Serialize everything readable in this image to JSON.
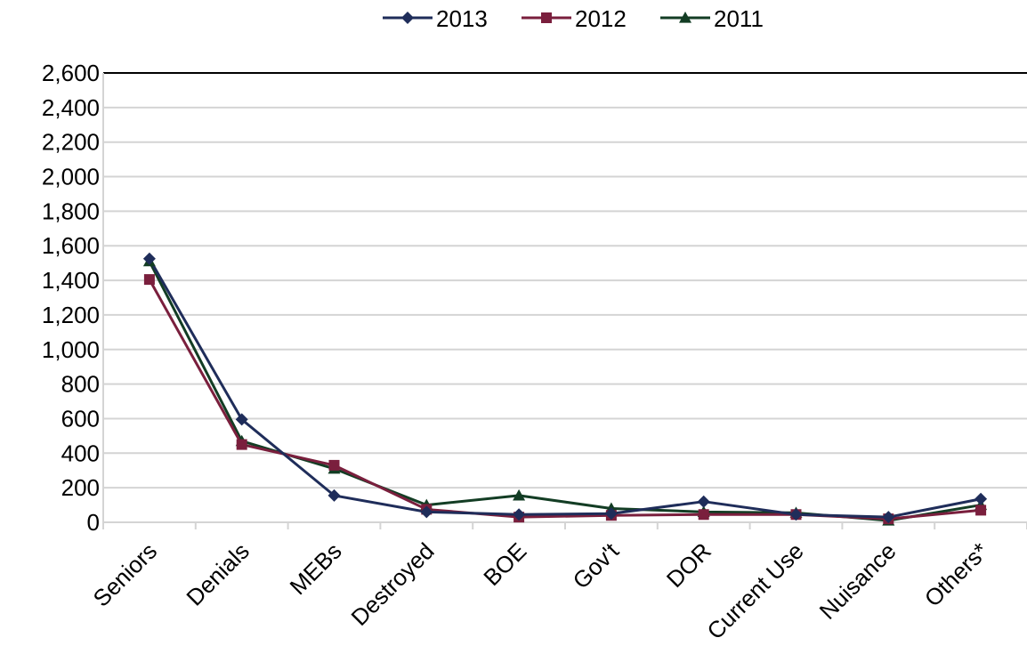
{
  "chart_data": {
    "type": "line",
    "categories": [
      "Seniors",
      "Denials",
      "MEBs",
      "Destroyed",
      "BOE",
      "Gov't",
      "DOR",
      "Current Use",
      "Nuisance",
      "Others*"
    ],
    "series": [
      {
        "name": "2013",
        "color": "#1f2d5a",
        "marker": "diamond",
        "values": [
          1525,
          595,
          155,
          60,
          45,
          50,
          120,
          45,
          30,
          135
        ]
      },
      {
        "name": "2012",
        "color": "#7a1f3d",
        "marker": "square",
        "values": [
          1405,
          450,
          330,
          75,
          30,
          40,
          45,
          45,
          20,
          70
        ]
      },
      {
        "name": "2011",
        "color": "#133d24",
        "marker": "triangle",
        "values": [
          1510,
          470,
          310,
          100,
          155,
          80,
          60,
          55,
          10,
          100
        ]
      }
    ],
    "ylim": [
      0,
      2600
    ],
    "y_ticks": [
      "0",
      "200",
      "400",
      "600",
      "800",
      "1,000",
      "1,200",
      "1,400",
      "1,600",
      "1,800",
      "2,000",
      "2,200",
      "2,400",
      "2,600"
    ],
    "grid": true,
    "legend_position": "top-center",
    "title": "",
    "xlabel": "",
    "ylabel": ""
  }
}
